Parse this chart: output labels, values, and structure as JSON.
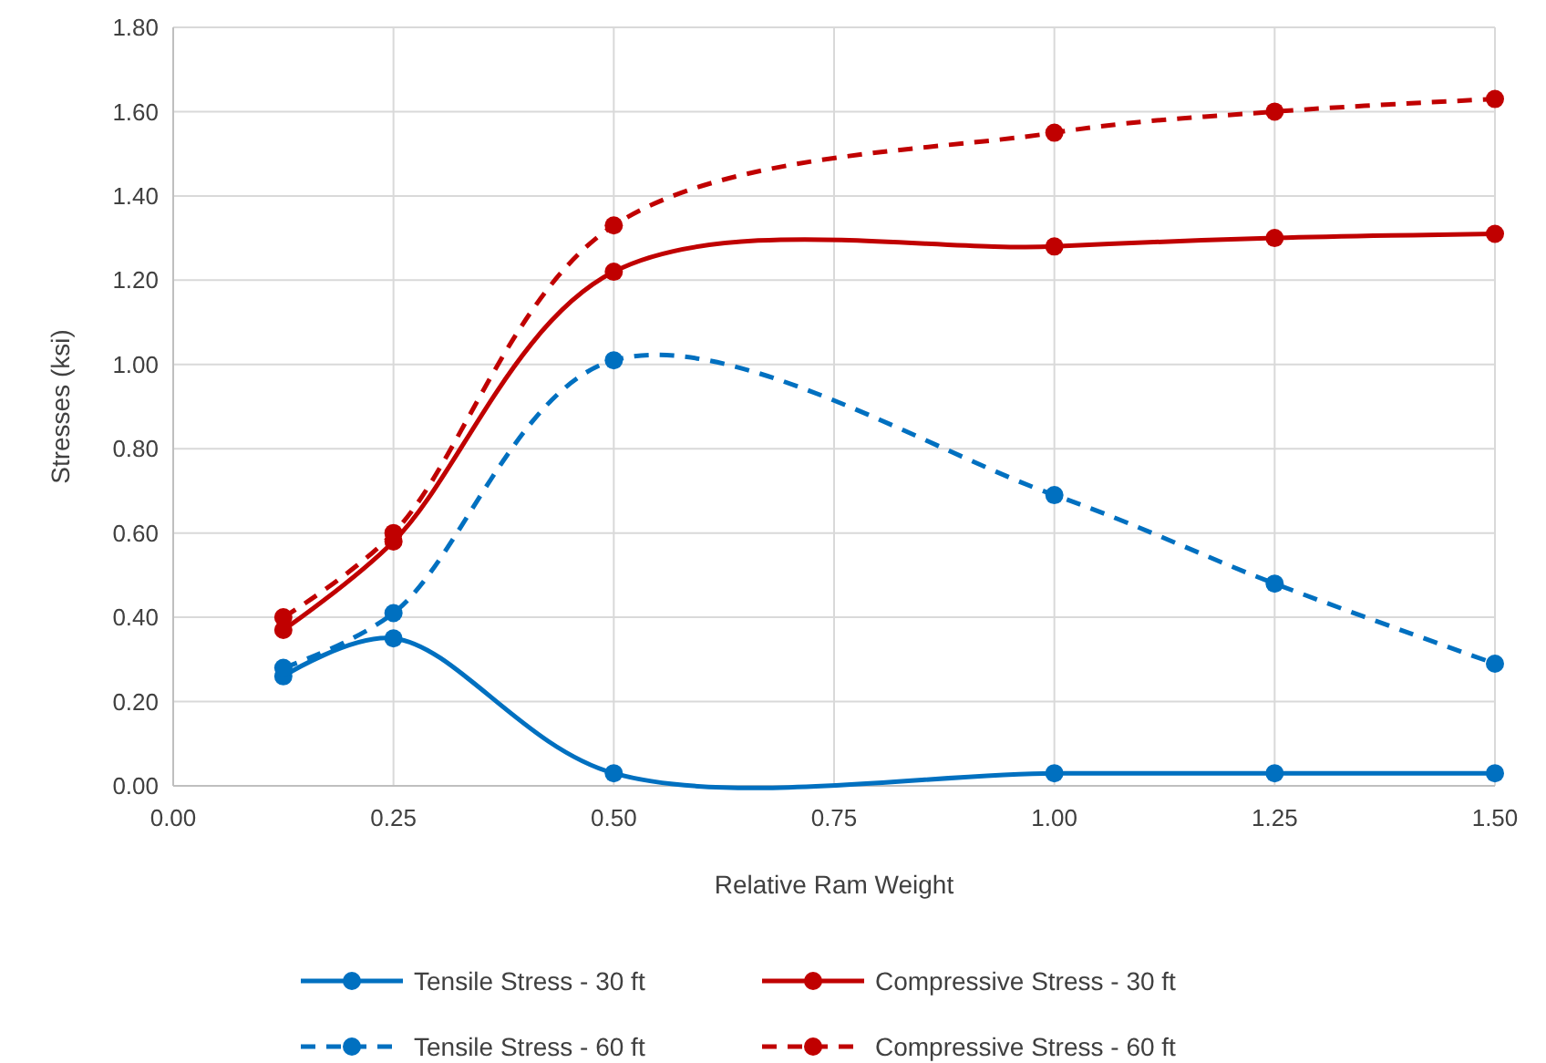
{
  "chart_data": {
    "type": "line",
    "xlabel": "Relative Ram Weight",
    "ylabel": "Stresses (ksi)",
    "x": [
      0.125,
      0.25,
      0.5,
      1.0,
      1.25,
      1.5
    ],
    "xlim": [
      0,
      1.5
    ],
    "xticks": [
      {
        "value": 0,
        "label": "0.00"
      },
      {
        "value": 0.25,
        "label": "0.25"
      },
      {
        "value": 0.5,
        "label": "0.50"
      },
      {
        "value": 0.75,
        "label": "0.75"
      },
      {
        "value": 1,
        "label": "1.00"
      },
      {
        "value": 1.25,
        "label": "1.25"
      },
      {
        "value": 1.5,
        "label": "1.50"
      }
    ],
    "ylim": [
      0,
      1.8
    ],
    "yticks": [
      {
        "value": 0,
        "label": "0.00"
      },
      {
        "value": 0.2,
        "label": "0.20"
      },
      {
        "value": 0.4,
        "label": "0.40"
      },
      {
        "value": 0.6,
        "label": "0.60"
      },
      {
        "value": 0.8,
        "label": "0.80"
      },
      {
        "value": 1,
        "label": "1.00"
      },
      {
        "value": 1.2,
        "label": "1.20"
      },
      {
        "value": 1.4,
        "label": "1.40"
      },
      {
        "value": 1.6,
        "label": "1.60"
      },
      {
        "value": 1.8,
        "label": "1.80"
      }
    ],
    "grid": true,
    "legend": "bottom",
    "marker": "circle",
    "series": [
      {
        "name": "Tensile Stress - 30 ft",
        "color": "#0070c0",
        "line_style": "solid",
        "values": [
          0.26,
          0.35,
          0.03,
          0.03,
          0.03,
          0.03
        ]
      },
      {
        "name": "Compressive Stress - 30 ft",
        "color": "#c00000",
        "line_style": "solid",
        "values": [
          0.37,
          0.58,
          1.22,
          1.28,
          1.3,
          1.31
        ]
      },
      {
        "name": "Tensile Stress - 60 ft",
        "color": "#0070c0",
        "line_style": "dashed",
        "values": [
          0.28,
          0.41,
          1.01,
          0.69,
          0.48,
          0.29
        ]
      },
      {
        "name": "Compressive Stress - 60 ft",
        "color": "#c00000",
        "line_style": "dashed",
        "values": [
          0.4,
          0.6,
          1.33,
          1.55,
          1.6,
          1.63
        ]
      }
    ]
  }
}
